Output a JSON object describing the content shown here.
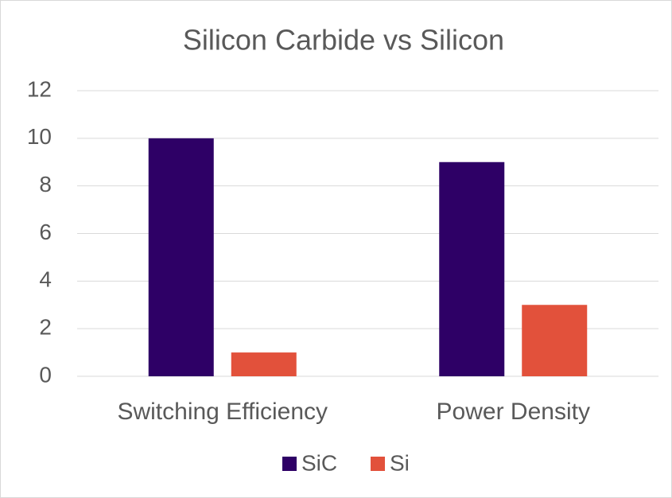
{
  "chart_data": {
    "type": "bar",
    "title": "Silicon Carbide vs Silicon",
    "categories": [
      "Switching Efficiency",
      "Power Density"
    ],
    "series": [
      {
        "name": "SiC",
        "color": "#2e0066",
        "values": [
          10,
          9
        ]
      },
      {
        "name": "Si",
        "color": "#e2513b",
        "values": [
          1,
          3
        ]
      }
    ],
    "ylim": [
      0,
      12
    ],
    "yticks": [
      0,
      2,
      4,
      6,
      8,
      10,
      12
    ],
    "grid": true,
    "legend": "bottom"
  }
}
